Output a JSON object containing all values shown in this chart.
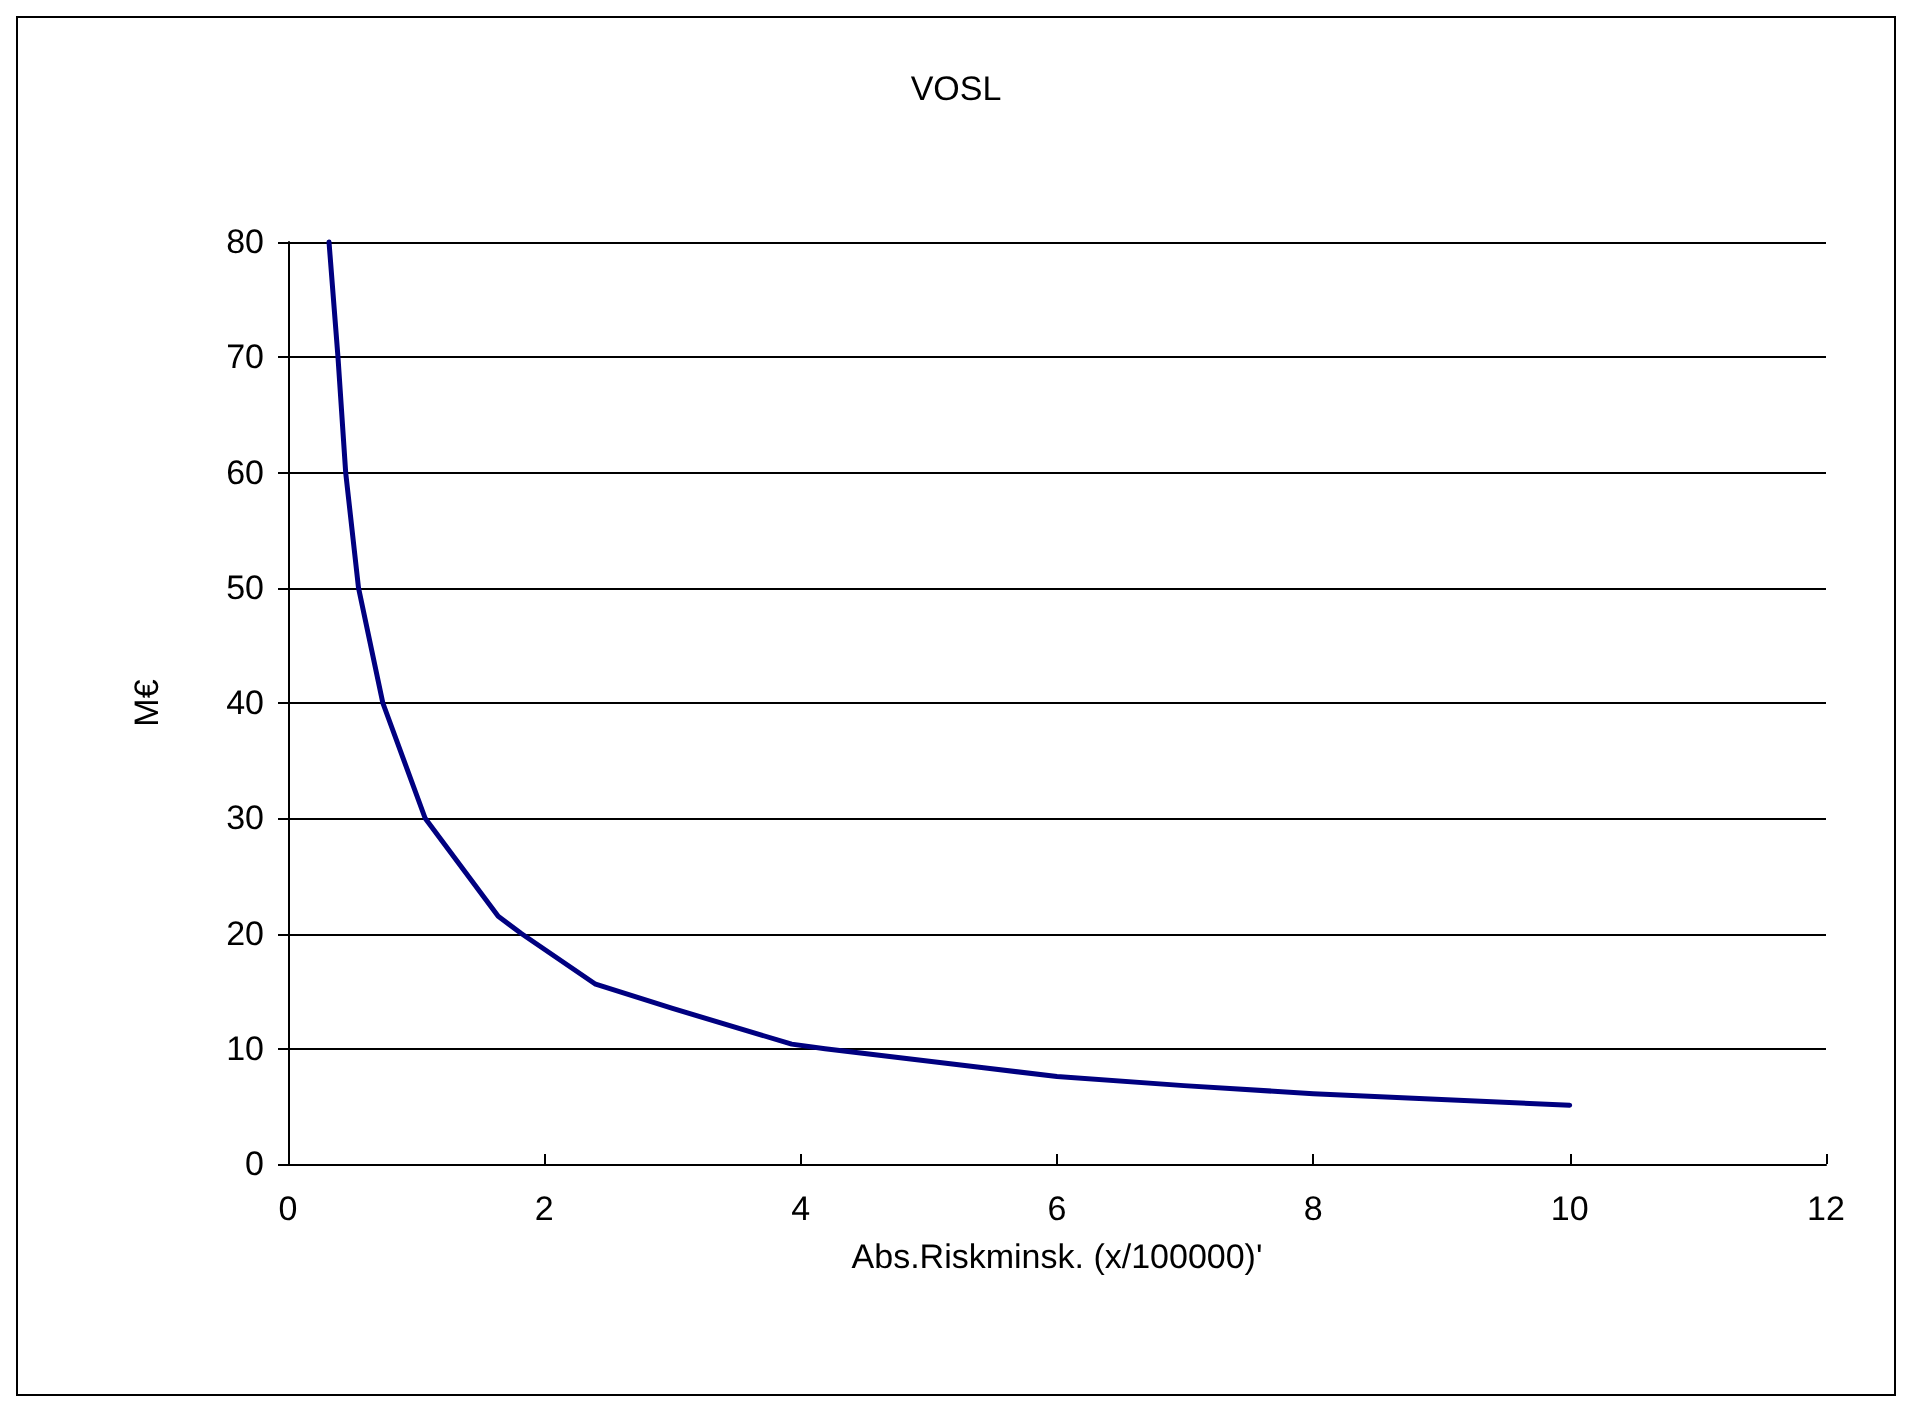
{
  "chart_data": {
    "type": "line",
    "title": "VOSL",
    "xlabel": "Abs.Riskminsk. (x/100000)'",
    "ylabel": "M€",
    "series": [
      {
        "color": "#000080",
        "x": [
          0.32,
          0.39,
          0.45,
          0.55,
          0.74,
          1.07,
          1.64,
          1.82,
          2.4,
          3.0,
          3.93,
          4.19,
          5.46,
          6.0,
          6.99,
          8.0,
          9.0,
          10.0
        ],
        "values": [
          80,
          70,
          60,
          50,
          40,
          30,
          21.5,
          20,
          15.6,
          13.5,
          10.4,
          10,
          8.3,
          7.6,
          6.8,
          6.1,
          5.6,
          5.1
        ]
      }
    ],
    "xlim": [
      0,
      12
    ],
    "xticks": [
      0,
      2,
      4,
      6,
      8,
      10,
      12
    ],
    "ylim": [
      0,
      80
    ],
    "yticks": [
      0,
      10,
      20,
      30,
      40,
      50,
      60,
      70,
      80
    ],
    "grid": "y",
    "marker": "none",
    "line_style": "solid"
  }
}
